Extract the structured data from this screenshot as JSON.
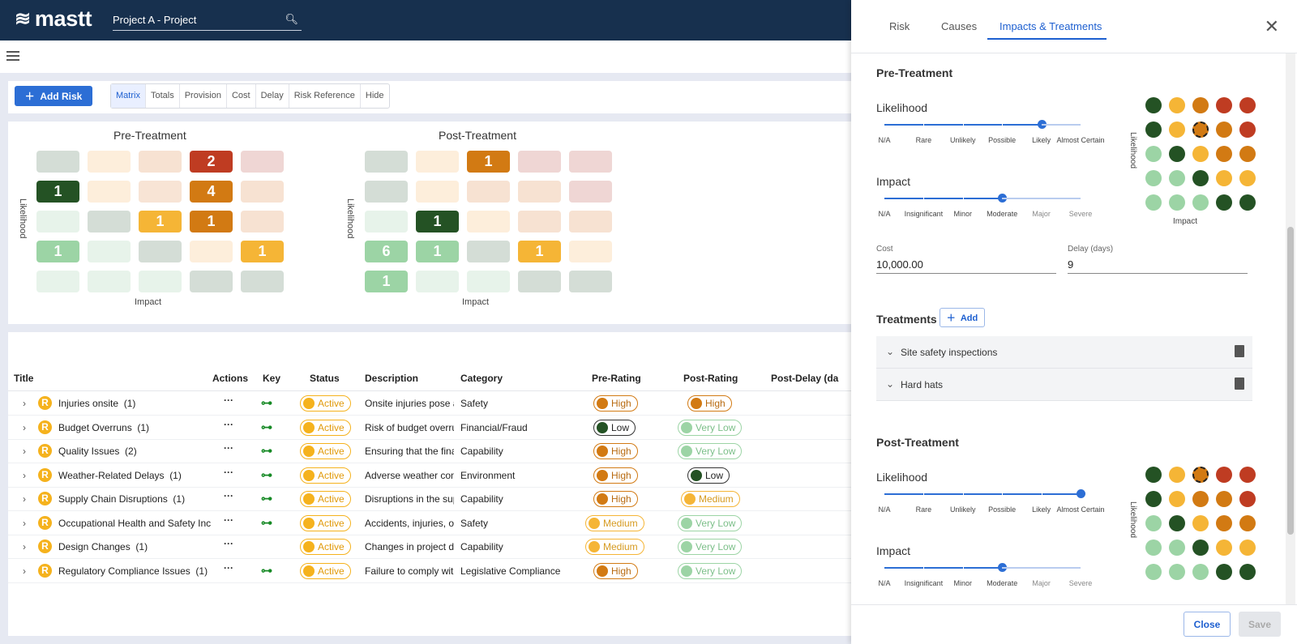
{
  "app": {
    "logo": "mastt",
    "project_name": "Project A - Project"
  },
  "toolbar": {
    "add_label": "Add Risk",
    "tabs": [
      "Matrix",
      "Totals",
      "Provision",
      "Cost",
      "Delay",
      "Risk Reference",
      "Hide"
    ],
    "active_tab": "Matrix"
  },
  "colors": {
    "navy": "#17304e",
    "accent": "#2c6ed5",
    "very_low": "#9cd4a5",
    "low": "#245224",
    "medium": "#f5b536",
    "high": "#d27a13",
    "extreme": "#bf3c22"
  },
  "matrix": {
    "pre": {
      "title": "Pre-Treatment",
      "ylabel": "Likelihood",
      "xlabel": "Impact",
      "cells": [
        [
          "lg2",
          "lo1",
          "lh1",
          {
            "v": "2",
            "c": "ex"
          },
          "le1"
        ],
        [
          {
            "v": "1",
            "c": "lo"
          },
          "lo1",
          "lh1x",
          {
            "v": "4",
            "c": "hi"
          },
          "lh1"
        ],
        [
          "lv1",
          "lg2",
          {
            "v": "1",
            "c": "me"
          },
          {
            "v": "1",
            "c": "hi"
          },
          "lh1"
        ],
        [
          {
            "v": "1",
            "c": "vl"
          },
          "lv1",
          "lg2",
          "lo1",
          {
            "v": "1",
            "c": "me"
          }
        ],
        [
          "lv1",
          "lv1",
          "lv1",
          "lg2",
          "lg2"
        ]
      ]
    },
    "post": {
      "title": "Post-Treatment",
      "ylabel": "Likelihood",
      "xlabel": "Impact",
      "cells": [
        [
          "lg2",
          "lo1",
          {
            "v": "1",
            "c": "hi"
          },
          "le1",
          "le1"
        ],
        [
          "lg2",
          "lo1",
          "lh1",
          "lh1",
          "le1"
        ],
        [
          "lv1",
          {
            "v": "1",
            "c": "lo"
          },
          "lo1",
          "lh1",
          "lh1"
        ],
        [
          {
            "v": "6",
            "c": "vl"
          },
          {
            "v": "1",
            "c": "vl"
          },
          "lg2",
          {
            "v": "1",
            "c": "me"
          },
          "lo1"
        ],
        [
          {
            "v": "1",
            "c": "vl"
          },
          "lv1",
          "lv1",
          "lg2",
          "lg2"
        ]
      ]
    }
  },
  "table": {
    "headers": [
      "Title",
      "Actions",
      "Key",
      "Status",
      "Description",
      "Category",
      "Pre-Rating",
      "Post-Rating",
      "Post-Delay (da"
    ],
    "rows": [
      {
        "title": "Injuries onsite",
        "count": "(1)",
        "key": true,
        "status": "Active",
        "desc": "Onsite injuries pose a",
        "cat": "Safety",
        "pre": "High",
        "post": "High"
      },
      {
        "title": "Budget Overruns",
        "count": "(1)",
        "key": true,
        "status": "Active",
        "desc": "Risk of budget overru",
        "cat": "Financial/Fraud",
        "pre": "Low",
        "post": "Very Low"
      },
      {
        "title": "Quality Issues",
        "count": "(2)",
        "key": true,
        "status": "Active",
        "desc": "Ensuring that the fina",
        "cat": "Capability",
        "pre": "High",
        "post": "Very Low"
      },
      {
        "title": "Weather-Related Delays",
        "count": "(1)",
        "key": true,
        "status": "Active",
        "desc": "Adverse weather con",
        "cat": "Environment",
        "pre": "High",
        "post": "Low"
      },
      {
        "title": "Supply Chain Disruptions",
        "count": "(1)",
        "key": true,
        "status": "Active",
        "desc": "Disruptions in the sup",
        "cat": "Capability",
        "pre": "High",
        "post": "Medium"
      },
      {
        "title": "Occupational Health and Safety Inc",
        "count": "",
        "key": true,
        "status": "Active",
        "desc": "Accidents, injuries, or",
        "cat": "Safety",
        "pre": "Medium",
        "post": "Very Low"
      },
      {
        "title": "Design Changes",
        "count": "(1)",
        "key": false,
        "status": "Active",
        "desc": "Changes in project de",
        "cat": "Capability",
        "pre": "Medium",
        "post": "Very Low"
      },
      {
        "title": "Regulatory Compliance Issues",
        "count": "(1)",
        "key": true,
        "status": "Active",
        "desc": "Failure to comply witl",
        "cat": "Legislative Compliance",
        "pre": "High",
        "post": "Very Low"
      }
    ],
    "row_badge": "R"
  },
  "drawer": {
    "tabs": [
      "Risk",
      "Causes",
      "Impacts & Treatments"
    ],
    "active_tab": "Impacts & Treatments",
    "pre": {
      "title": "Pre-Treatment",
      "likelihood_label": "Likelihood",
      "likelihood_options": [
        "N/A",
        "Rare",
        "Unlikely",
        "Possible",
        "Likely",
        "Almost Certain"
      ],
      "likelihood_value": "Likely",
      "impact_label": "Impact",
      "impact_options": [
        "N/A",
        "Insignificant",
        "Minor",
        "Moderate",
        "Major",
        "Severe"
      ],
      "impact_value": "Moderate",
      "grid_ylabel": "Likelihood",
      "grid_xlabel": "Impact"
    },
    "cost_label": "Cost",
    "cost_value": "10,000.00",
    "delay_label": "Delay (days)",
    "delay_value": "9",
    "treatments_title": "Treatments",
    "treatments_add": "Add",
    "treatments": [
      "Site safety inspections",
      "Hard hats"
    ],
    "post": {
      "title": "Post-Treatment",
      "likelihood_label": "Likelihood",
      "likelihood_value": "Almost Certain",
      "impact_label": "Impact",
      "impact_value": "Moderate",
      "grid_ylabel": "Likelihood",
      "grid_xlabel": "Impact"
    },
    "close_label": "Close",
    "save_label": "Save"
  }
}
